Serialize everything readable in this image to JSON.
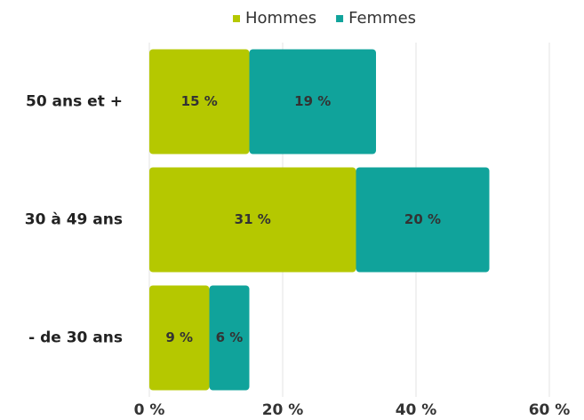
{
  "chart_data": {
    "type": "stacked-bar-horizontal",
    "categories": [
      "50 ans et +",
      "30 à 49 ans",
      "- de 30 ans"
    ],
    "series": [
      {
        "name": "Hommes",
        "color": "#b5c800",
        "values": [
          15,
          31,
          9
        ],
        "value_labels": [
          "15 %",
          "31 %",
          "9 %"
        ]
      },
      {
        "name": "Femmes",
        "color": "#10a39b",
        "values": [
          19,
          20,
          6
        ],
        "value_labels": [
          "19 %",
          "20 %",
          "6 %"
        ]
      }
    ],
    "xlim": [
      0,
      60
    ],
    "xticks": [
      {
        "value": 0,
        "label": "0 %"
      },
      {
        "value": 20,
        "label": "20 %"
      },
      {
        "value": 40,
        "label": "40 %"
      },
      {
        "value": 60,
        "label": "60 %"
      }
    ],
    "grid": true,
    "legend": "top"
  }
}
